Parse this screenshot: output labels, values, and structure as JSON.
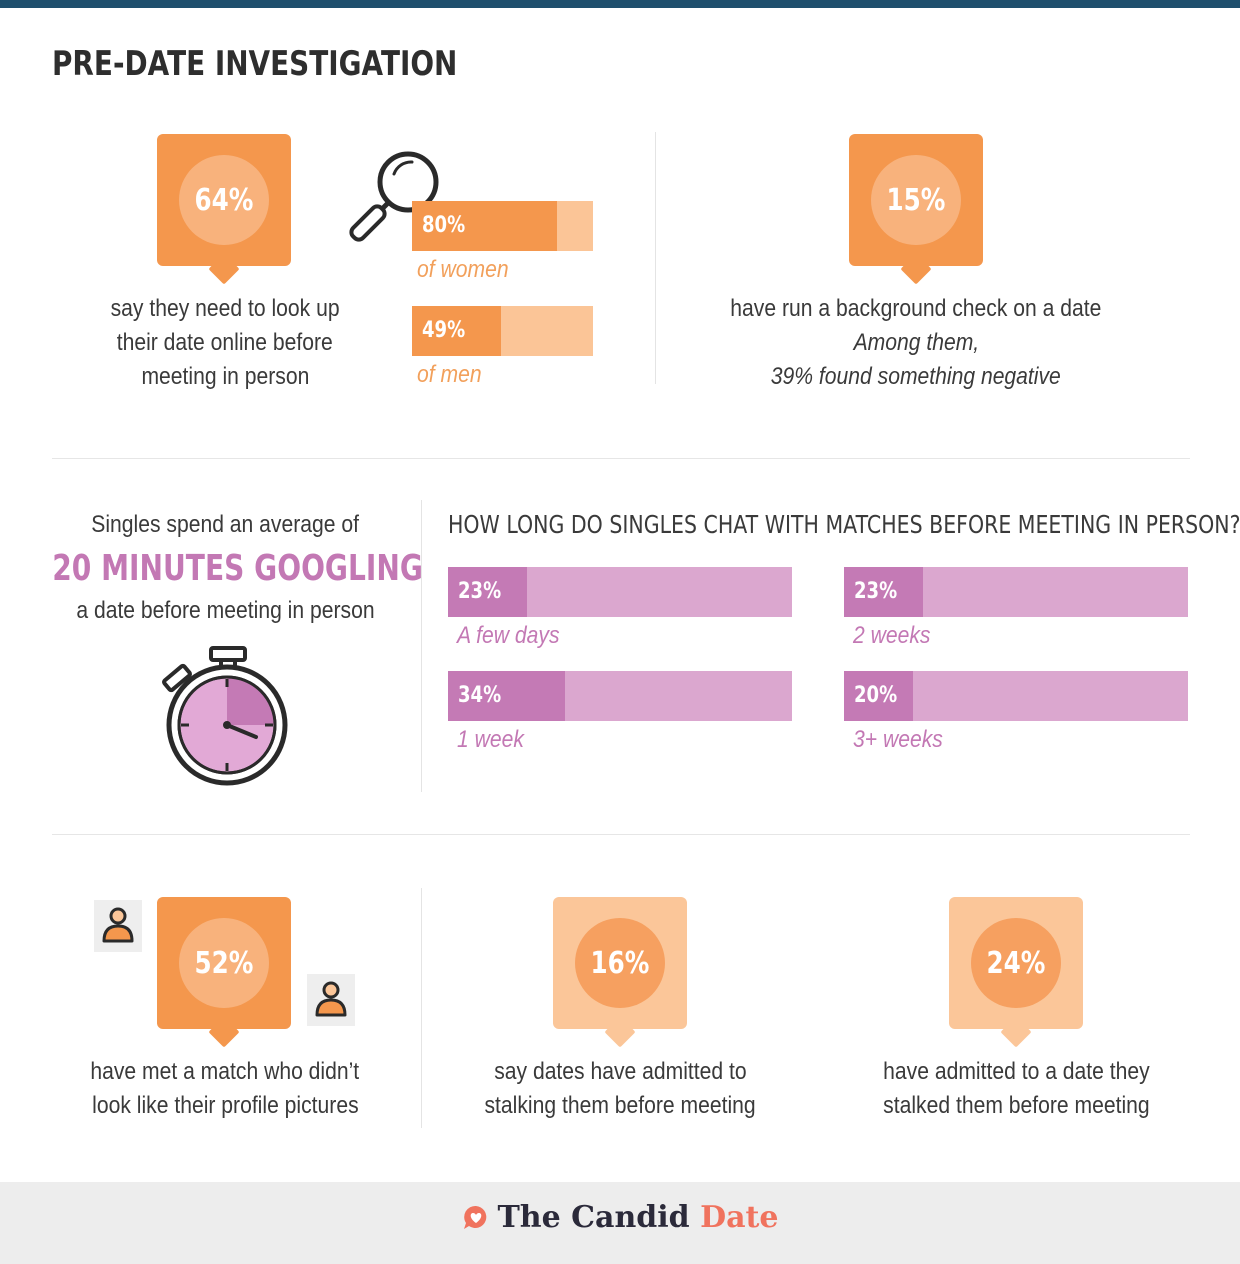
{
  "title": "PRE-DATE INVESTIGATION",
  "section1": {
    "lookup_stat": "64%",
    "lookup_lines": [
      "say they need to look up",
      "their date online before",
      "meeting in person"
    ],
    "women_value": 80,
    "women_label": "80%",
    "women_caption": "of women",
    "men_value": 49,
    "men_label": "49%",
    "men_caption": "of men",
    "background_stat": "15%",
    "background_line1": "have run a background check on a date",
    "background_line2": "Among them,",
    "background_line3": "39% found something negative"
  },
  "section2": {
    "google_line1": "Singles spend an average of",
    "google_highlight": "20 MINUTES GOOGLING",
    "google_line2": "a date before meeting in person",
    "chat_heading": "HOW LONG DO SINGLES CHAT WITH MATCHES BEFORE MEETING IN PERSON?",
    "chat_bars": [
      {
        "value": 23,
        "label": "23%",
        "caption": "A few days"
      },
      {
        "value": 23,
        "label": "23%",
        "caption": "2 weeks"
      },
      {
        "value": 34,
        "label": "34%",
        "caption": "1 week"
      },
      {
        "value": 20,
        "label": "20%",
        "caption": "3+ weeks"
      }
    ]
  },
  "section3": {
    "mismatch_stat": "52%",
    "mismatch_lines": [
      "have met a match who didn’t",
      "look like their profile pictures"
    ],
    "stalked_by_stat": "16%",
    "stalked_by_lines": [
      "say dates have admitted to",
      "stalking them before meeting"
    ],
    "stalker_stat": "24%",
    "stalker_lines": [
      "have admitted to a date they",
      "stalked them before meeting"
    ]
  },
  "footer": {
    "brand_main": "The Candid",
    "brand_accent": "Date"
  },
  "colors": {
    "orange": "#f4974d",
    "peach": "#fbc699",
    "pink": "#c47ab5",
    "light_pink": "#dba7cf",
    "header_bar": "#1f4f6d"
  },
  "icons": [
    "magnifier-icon",
    "stopwatch-icon",
    "person-icon",
    "heart-chat-icon"
  ]
}
